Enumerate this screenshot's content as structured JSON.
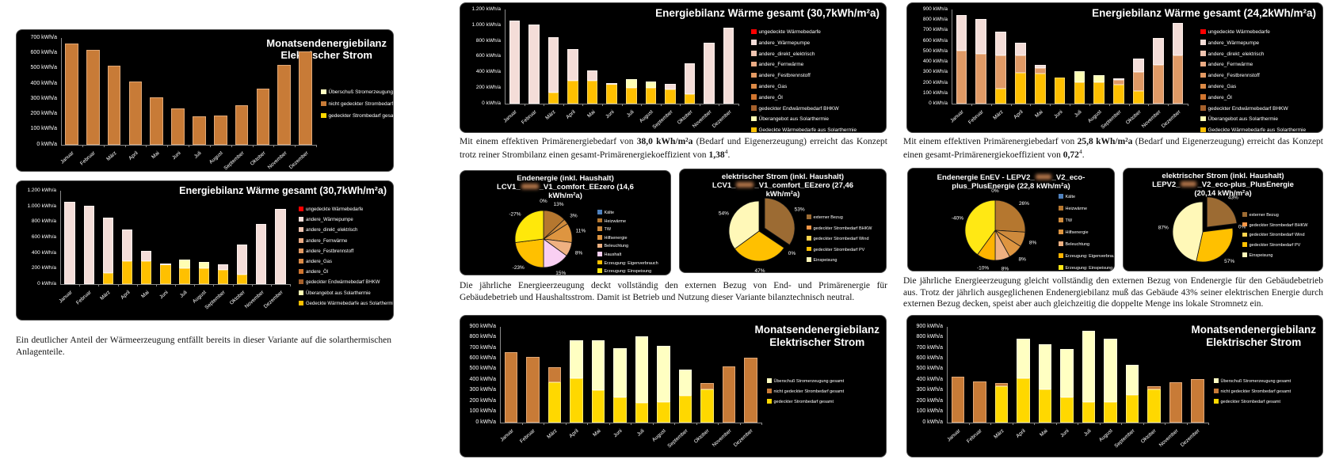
{
  "months": [
    "Januar",
    "Februar",
    "März",
    "April",
    "Mai",
    "Juni",
    "Juli",
    "August",
    "September",
    "Oktober",
    "November",
    "Dezember"
  ],
  "unit": "kWh/a",
  "texts": {
    "left_caption": [
      {
        "t": "Ein deutlicher Anteil der Wärmeerzeugung entfällt bereits in dieser Variante auf die solarthermischen Anlagenteile."
      }
    ],
    "mid_para1": [
      {
        "t": "Mit einem effektiven Primärenergiebedarf von "
      },
      {
        "t": "38,0 kWh/m²a",
        "b": true
      },
      {
        "t": " (Bedarf und Eigenerzeugung) erreicht das Konzept trotz reiner Strombilanz einen gesamt-Primärenergiekoeffizient von "
      },
      {
        "t": "1,38",
        "b": true
      },
      {
        "t": "4",
        "sup": true
      },
      {
        "t": "."
      }
    ],
    "mid_para2": [
      {
        "t": "Die jährliche Energieerzeugung deckt vollständig den externen Bezug von End- und Primärenergie für Gebäudebetrieb und Haushaltsstrom. Damit ist Betrieb und Nutzung dieser Variante bilanztechnisch neutral."
      }
    ],
    "right_para1": [
      {
        "t": "Mit einem effektiven Primärenergiebedarf von "
      },
      {
        "t": "25,8 kWh/m²a",
        "b": true
      },
      {
        "t": " (Bedarf und Eigenerzeugung) erreicht das Konzept einen gesamt-Primärenergiekoeffizient von "
      },
      {
        "t": "0,72",
        "b": true
      },
      {
        "t": "4",
        "sup": true
      },
      {
        "t": "."
      }
    ],
    "right_para2": [
      {
        "t": "Die jährliche Energieerzeugung gleicht vollständig den externen Bezug von Endenergie für den Gebäudebetrieb aus. Trotz der jährlich ausgeglichenen Endenergiebilanz muß das Gebäude 43% seiner elektrischen Energie durch externen Bezug decken, speist aber auch gleichzeitig die doppelte Menge ins lokale Stromnetz ein."
      }
    ]
  },
  "chart_data": [
    {
      "id": "strom_monat_v1",
      "type": "bar",
      "title": [
        "Monatsendenergiebilanz",
        "Elektrischer Strom"
      ],
      "unit": "kWh/a",
      "ymax": 700,
      "ystep": 100,
      "categories": "months",
      "series": [
        {
          "name": "gedeckter Strombedarf gesamt",
          "color": "#FFD800",
          "border": "#FFE96A",
          "values": [
            0,
            0,
            0,
            0,
            0,
            0,
            0,
            0,
            0,
            0,
            0,
            0
          ]
        },
        {
          "name": "nicht gedeckter Strombedarf gesamt",
          "color": "#C87B37",
          "border": "#E0A877",
          "values": [
            665,
            620,
            520,
            415,
            310,
            240,
            185,
            190,
            260,
            370,
            525,
            610
          ]
        },
        {
          "name": "Überschuß Stromerzeugung gesamt",
          "color": "#FFFFC2",
          "border": "#FFFFE2",
          "values": [
            0,
            0,
            0,
            0,
            0,
            0,
            0,
            0,
            0,
            0,
            0,
            0
          ]
        }
      ],
      "legend": [
        {
          "label": "Überschuß Stromerzeugung gesamt",
          "color": "#FFFFC2"
        },
        {
          "label": "nicht gedeckter Strombedarf gesamt",
          "color": "#C87B37"
        },
        {
          "label": "gedeckter Strombedarf gesamt",
          "color": "#FFD800"
        }
      ]
    },
    {
      "id": "waerme_30_7",
      "type": "bar",
      "title": [
        "Energiebilanz Wärme gesamt (30,7kWh/m²a)"
      ],
      "unit": "kWh/a",
      "ymax": 1200,
      "ystep": 200,
      "categories": "months",
      "series": [
        {
          "name": "Gedeckte Wärmebedarfe aus Solarthermie",
          "color": "#FFC000",
          "border": "#FFD65E",
          "values": [
            0,
            0,
            140,
            295,
            295,
            255,
            205,
            205,
            185,
            120,
            0,
            0
          ]
        },
        {
          "name": "andere_Wärmepumpe",
          "color": "#F4DDD8",
          "border": "#FAEFEC",
          "values": [
            1060,
            1010,
            710,
            405,
            130,
            10,
            0,
            0,
            70,
            390,
            775,
            970
          ]
        },
        {
          "name": "Überangebot aus Solarthermie",
          "color": "#FFFFB3",
          "border": "#FFFFD9",
          "values": [
            0,
            0,
            0,
            0,
            0,
            0,
            110,
            80,
            0,
            0,
            0,
            0
          ]
        }
      ],
      "legend": [
        {
          "label": "ungedeckte Wärmebedarfe",
          "color": "#FF0000"
        },
        {
          "label": "andere_Wärmepumpe",
          "color": "#F4DDD8"
        },
        {
          "label": "andere_direkt_elektrisch",
          "color": "#EFC4B0"
        },
        {
          "label": "andere_Fernwärme",
          "color": "#EAAB84"
        },
        {
          "label": "andere_Festbrennstoff",
          "color": "#E39A63"
        },
        {
          "label": "andere_Gas",
          "color": "#DC8A46"
        },
        {
          "label": "andere_Öl",
          "color": "#D1752F"
        },
        {
          "label": "gedeckter Endwärmebedarf BHKW",
          "color": "#A5602B"
        },
        {
          "label": "Überangebot aus Solarthermie",
          "color": "#FFFFB3"
        },
        {
          "label": "Gedeckte Wärmebedarfe aus Solarthermie",
          "color": "#FFC000"
        }
      ]
    },
    {
      "id": "waerme_24_2",
      "type": "bar",
      "title": [
        "Energiebilanz Wärme gesamt (24,2kWh/m²a)"
      ],
      "unit": "kWh/a",
      "ymax": 900,
      "ystep": 100,
      "categories": "months",
      "series": [
        {
          "name": "Gedeckte Wärmebedarfe aus Solarthermie",
          "color": "#FFC000",
          "border": "#FFD65E",
          "values": [
            0,
            0,
            145,
            295,
            290,
            250,
            205,
            205,
            185,
            120,
            0,
            0
          ]
        },
        {
          "name": "andere_Fernwärme",
          "color": "#E09A66",
          "border": "#EDC2A3",
          "values": [
            510,
            480,
            320,
            165,
            50,
            0,
            0,
            0,
            40,
            180,
            370,
            465
          ]
        },
        {
          "name": "andere_Wärmepumpe",
          "color": "#F4DDD8",
          "border": "#FAEFEC",
          "values": [
            340,
            330,
            225,
            120,
            30,
            0,
            0,
            0,
            15,
            130,
            260,
            310
          ]
        },
        {
          "name": "Überangebot aus Solarthermie",
          "color": "#FFFFB3",
          "border": "#FFFFD9",
          "values": [
            0,
            0,
            0,
            0,
            0,
            0,
            105,
            70,
            0,
            0,
            0,
            0
          ]
        }
      ],
      "legend": [
        {
          "label": "ungedeckte Wärmebedarfe",
          "color": "#FF0000"
        },
        {
          "label": "andere_Wärmepumpe",
          "color": "#F4DDD8"
        },
        {
          "label": "andere_direkt_elektrisch",
          "color": "#EFC4B0"
        },
        {
          "label": "andere_Fernwärme",
          "color": "#EAAB84"
        },
        {
          "label": "andere_Festbrennstoff",
          "color": "#E39A63"
        },
        {
          "label": "andere_Gas",
          "color": "#DC8A46"
        },
        {
          "label": "andere_Öl",
          "color": "#D1752F"
        },
        {
          "label": "gedeckter Endwärmebedarf BHKW",
          "color": "#A5602B"
        },
        {
          "label": "Überangebot aus Solarthermie",
          "color": "#FFFFB3"
        },
        {
          "label": "Gedeckte Wärmebedarfe aus Solarthermie",
          "color": "#FFC000"
        }
      ]
    },
    {
      "id": "strom_monat_mid",
      "type": "bar",
      "title": [
        "Monatsendenergiebilanz",
        "Elektrischer Strom"
      ],
      "unit": "kWh/a",
      "ymax": 900,
      "ystep": 100,
      "categories": "months",
      "series": [
        {
          "name": "gedeckter Strombedarf gesamt",
          "color": "#FFD800",
          "border": "#FFE96A",
          "values": [
            0,
            0,
            380,
            415,
            305,
            240,
            185,
            190,
            255,
            310,
            0,
            0
          ]
        },
        {
          "name": "nicht gedeckter Strombedarf gesamt",
          "color": "#C87B37",
          "border": "#E0A877",
          "values": [
            665,
            620,
            140,
            0,
            0,
            0,
            0,
            0,
            0,
            60,
            525,
            610
          ]
        },
        {
          "name": "Überschuß Stromerzeugung gesamt",
          "color": "#FFFFC2",
          "border": "#FFFFE2",
          "values": [
            0,
            0,
            0,
            360,
            465,
            460,
            625,
            530,
            240,
            0,
            0,
            0
          ]
        }
      ],
      "legend": [
        {
          "label": "Überschuß Stromerzeugung gesamt",
          "color": "#FFFFC2"
        },
        {
          "label": "nicht gedeckter Strombedarf gesamt",
          "color": "#C87B37"
        },
        {
          "label": "gedeckter Strombedarf gesamt",
          "color": "#FFD800"
        }
      ]
    },
    {
      "id": "strom_monat_right",
      "type": "bar",
      "title": [
        "Monatsendenergiebilanz",
        "Elektrischer Strom"
      ],
      "unit": "kWh/a",
      "ymax": 900,
      "ystep": 100,
      "categories": "months",
      "series": [
        {
          "name": "gedeckter Strombedarf gesamt",
          "color": "#FFD800",
          "border": "#FFE96A",
          "values": [
            0,
            0,
            345,
            420,
            310,
            240,
            190,
            190,
            260,
            310,
            0,
            0
          ]
        },
        {
          "name": "nicht gedeckter Strombedarf gesamt",
          "color": "#C87B37",
          "border": "#E0A877",
          "values": [
            430,
            390,
            25,
            0,
            0,
            0,
            0,
            0,
            0,
            30,
            380,
            410
          ]
        },
        {
          "name": "Überschuß Stromerzeugung gesamt",
          "color": "#FFFFC2",
          "border": "#FFFFE2",
          "values": [
            0,
            0,
            0,
            370,
            430,
            450,
            670,
            600,
            280,
            0,
            0,
            0
          ]
        }
      ],
      "legend": [
        {
          "label": "Überschuß Stromerzeugung gesamt",
          "color": "#FFFFC2"
        },
        {
          "label": "nicht gedeckter Strombedarf gesamt",
          "color": "#C87B37"
        },
        {
          "label": "gedeckter Strombedarf gesamt",
          "color": "#FFD800"
        }
      ]
    },
    {
      "id": "pie_end_146",
      "type": "pie",
      "title": [
        [
          {
            "t": "Endenergie (inkl. Haushalt)"
          }
        ],
        [
          {
            "t": "LCV1_"
          },
          {
            "red": 22
          },
          {
            "t": "_V1_comfort_EEzero (14,6"
          }
        ],
        [
          {
            "t": "kWh/m²a)"
          }
        ]
      ],
      "slices": [
        {
          "label": "Kälte",
          "color": "#4F81BD",
          "value": 0,
          "pct": "0%"
        },
        {
          "label": "Heizwärme",
          "color": "#B5772F",
          "value": 13,
          "pct": "13%"
        },
        {
          "label": "TW",
          "color": "#CE8A3C",
          "value": 3,
          "pct": "3%"
        },
        {
          "label": "Hilfsenergie",
          "color": "#DE9540",
          "value": 11,
          "pct": "11%"
        },
        {
          "label": "Beleuchtung",
          "color": "#EFB181",
          "value": 8,
          "pct": "8%"
        },
        {
          "label": "Haushalt",
          "color": "#F9CFF2",
          "value": 15,
          "pct": "15%"
        },
        {
          "label": "Erzeugung: Eigenverbrauch",
          "color": "#FFC000",
          "value": 23,
          "pct": "-23%"
        },
        {
          "label": "Erzeugung: Einspeisung",
          "color": "#FFE80A",
          "value": 27,
          "pct": "-27%"
        }
      ],
      "legend": [
        {
          "label": "Kälte",
          "color": "#4F81BD"
        },
        {
          "label": "Heizwärme",
          "color": "#B5772F"
        },
        {
          "label": "TW",
          "color": "#CE8A3C"
        },
        {
          "label": "Hilfsenergie",
          "color": "#DE9540"
        },
        {
          "label": "Beleuchtung",
          "color": "#EFB181"
        },
        {
          "label": "Haushalt",
          "color": "#F9CFF2"
        },
        {
          "label": "Erzeugung: Eigenverbrauch",
          "color": "#FFC000"
        },
        {
          "label": "Erzeugung: Einspeisung",
          "color": "#FFE80A"
        }
      ]
    },
    {
      "id": "pie_strom_2746",
      "type": "pie",
      "title": [
        [
          {
            "t": "elektrischer Strom (inkl. Haushalt)"
          }
        ],
        [
          {
            "t": "LCV1_"
          },
          {
            "red": 22
          },
          {
            "t": "_V1_comfort_EEzero (27,46"
          }
        ],
        [
          {
            "t": "kWh/m²a)"
          }
        ]
      ],
      "slices": [
        {
          "label": "externer Bezug",
          "color": "#9C6B33",
          "value": 53,
          "pct": "53%",
          "exploded": true
        },
        {
          "label": "gedeckter Strombedarf BHKW",
          "color": "#F79646",
          "value": 0,
          "pct": "0%"
        },
        {
          "label": "gedeckter Strombedarf Wind",
          "color": "#FFD34D",
          "value": 0,
          "pct": ""
        },
        {
          "label": "gedeckter Strombedarf PV",
          "color": "#FFC000",
          "value": 47,
          "pct": "47%"
        },
        {
          "label": "Einspeisung",
          "color": "#FFF8B8",
          "value": 54,
          "pct": "54%"
        }
      ],
      "legend": [
        {
          "label": "externer Bezug",
          "color": "#9C6B33"
        },
        {
          "label": "gedeckter Strombedarf BHKW",
          "color": "#F79646"
        },
        {
          "label": "gedeckter Strombedarf Wind",
          "color": "#FFD34D"
        },
        {
          "label": "gedeckter Strombedarf PV",
          "color": "#FFC000"
        },
        {
          "label": "Einspeisung",
          "color": "#FFF8B8"
        }
      ]
    },
    {
      "id": "pie_end_228",
      "type": "pie",
      "title": [
        [
          {
            "t": "Endenergie EnEV - LEPV2_"
          },
          {
            "red": 20
          },
          {
            "t": "_V2_eco-"
          }
        ],
        [
          {
            "t": "plus_PlusEnergie (22,8 kWh/m²a)"
          }
        ]
      ],
      "slices": [
        {
          "label": "Kälte",
          "color": "#4F81BD",
          "value": 0,
          "pct": "0%"
        },
        {
          "label": "Heizwärme",
          "color": "#B5772F",
          "value": 26,
          "pct": "26%"
        },
        {
          "label": "TW",
          "color": "#CE8A3C",
          "value": 8,
          "pct": "8%"
        },
        {
          "label": "Hilfsenergie",
          "color": "#DE9540",
          "value": 8,
          "pct": "8%"
        },
        {
          "label": "Beleuchtung",
          "color": "#EFB181",
          "value": 8,
          "pct": "8%"
        },
        {
          "label": "Erzeugung: Eigenverbrauch",
          "color": "#FFB300",
          "value": 10,
          "pct": "-10%"
        },
        {
          "label": "Erzeugung: Einspeisung",
          "color": "#FFE814",
          "value": 40,
          "pct": "-40%"
        }
      ],
      "legend": [
        {
          "label": "Kälte",
          "color": "#4F81BD"
        },
        {
          "label": "Heizwärme",
          "color": "#B5772F"
        },
        {
          "label": "TW",
          "color": "#CE8A3C"
        },
        {
          "label": "Hilfsenergie",
          "color": "#DE9540"
        },
        {
          "label": "Beleuchtung",
          "color": "#EFB181"
        },
        {
          "label": "Erzeugung: Eigenverbrauch",
          "color": "#FFB300"
        },
        {
          "label": "Erzeugung: Einspeisung",
          "color": "#FFE814"
        }
      ]
    },
    {
      "id": "pie_strom_2014",
      "type": "pie",
      "title": [
        [
          {
            "t": "elektrischer Strom (inkl. Haushalt)"
          }
        ],
        [
          {
            "t": "LEPV2_"
          },
          {
            "red": 20
          },
          {
            "t": "_V2_eco-plus_PlusEnergie"
          }
        ],
        [
          {
            "t": "(20,14 kWh/m²a)"
          }
        ]
      ],
      "slices": [
        {
          "label": "externer Bezug",
          "color": "#9C6B33",
          "value": 43,
          "pct": "43%",
          "exploded": true
        },
        {
          "label": "gedeckter Strombedarf BHKW",
          "color": "#F79646",
          "value": 0,
          "pct": "0%"
        },
        {
          "label": "gedeckter Strombedarf Wind",
          "color": "#FFD34D",
          "value": 0,
          "pct": ""
        },
        {
          "label": "gedeckter Strombedarf PV",
          "color": "#FFC000",
          "value": 57,
          "pct": "57%"
        },
        {
          "label": "Einspeisung",
          "color": "#FFF8B8",
          "value": 87,
          "pct": "87%"
        }
      ],
      "legend": [
        {
          "label": "externer Bezug",
          "color": "#9C6B33"
        },
        {
          "label": "gedeckter Strombedarf BHKW",
          "color": "#F79646"
        },
        {
          "label": "gedeckter Strombedarf Wind",
          "color": "#FFD34D"
        },
        {
          "label": "gedeckter Strombedarf PV",
          "color": "#FFC000"
        },
        {
          "label": "Einspeisung",
          "color": "#FFF8B8"
        }
      ]
    }
  ]
}
